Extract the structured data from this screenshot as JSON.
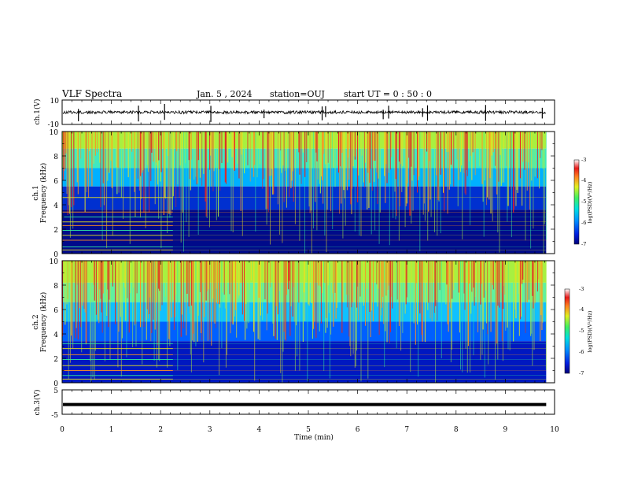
{
  "header": {
    "title": "VLF Spectra",
    "date": "Jan. 5  , 2024",
    "station": "station=OUJ",
    "start": "start  UT =   0 : 50 : 0"
  },
  "colors": {
    "spectrogram_palette": [
      "#00007a",
      "#0010c8",
      "#0060ff",
      "#00c8ff",
      "#30e8a0",
      "#a8f040",
      "#e8e020",
      "#ff9020",
      "#e82020",
      "#f8f8f8"
    ]
  },
  "chart_data": [
    {
      "type": "line",
      "name": "ch1-waveform",
      "ylabel": "ch.1(V)",
      "ylim": [
        -10,
        10
      ],
      "y_ticks": [
        "10",
        "-10"
      ],
      "xlim": [
        0,
        10
      ],
      "baseline": 0,
      "noise_amplitude": 1.2,
      "spikes_min": [
        0.33,
        1.55,
        2.08,
        3.02,
        4.1,
        5.28,
        5.35,
        6.52,
        6.63,
        7.32,
        7.42,
        8.6,
        9.75
      ],
      "data_end_min": 9.83
    },
    {
      "type": "heatmap",
      "name": "ch1-spectrogram",
      "ylabel": "ch.1 Frequency (kHz)",
      "ylabel_top": "ch.1",
      "ylabel_bottom": "Frequency  (kHz)",
      "ylim": [
        0,
        10
      ],
      "y_ticks": [
        "10",
        "8",
        "6",
        "4",
        "2",
        "0"
      ],
      "xlim": [
        0,
        10
      ],
      "data_end_min": 9.83,
      "colorbar": {
        "range": [
          -7,
          -3
        ],
        "ticks": [
          "-3",
          "-4",
          "-5",
          "-6",
          "-7"
        ],
        "label": "log(PSD)(V²/Hz)"
      },
      "tone_lines_khz": [
        0.3,
        0.55,
        1.1,
        1.5,
        1.9,
        2.3,
        2.6,
        3.0,
        3.4,
        4.6
      ],
      "tone_cutoff_min": 2.25
    },
    {
      "type": "heatmap",
      "name": "ch2-spectrogram",
      "ylabel": "ch.2 Frequency (kHz)",
      "ylabel_top": "ch.2",
      "ylabel_bottom": "Frequency  (kHz)",
      "ylim": [
        0,
        10
      ],
      "y_ticks": [
        "10",
        "8",
        "6",
        "4",
        "2",
        "0"
      ],
      "xlim": [
        0,
        10
      ],
      "data_end_min": 9.83,
      "colorbar": {
        "range": [
          -7,
          -3
        ],
        "ticks": [
          "-3",
          "-4",
          "-5",
          "-6",
          "-7"
        ],
        "label": "log(PSD)(V²/Hz)"
      },
      "tone_lines_khz": [
        0.3,
        0.6,
        1.0,
        1.4,
        1.9,
        2.3,
        2.8,
        3.2
      ],
      "tone_cutoff_min": 2.25
    },
    {
      "type": "line",
      "name": "ch3-waveform",
      "ylabel": "ch.3(V)",
      "ylim": [
        -5,
        5
      ],
      "y_ticks": [
        "5",
        "-5"
      ],
      "xlim": [
        0,
        10
      ],
      "baseline": -1,
      "data_end_min": 9.83,
      "xlabel": "Time  (min)",
      "x_ticks": [
        "0",
        "1",
        "2",
        "3",
        "4",
        "5",
        "6",
        "7",
        "8",
        "9",
        "10"
      ]
    }
  ]
}
